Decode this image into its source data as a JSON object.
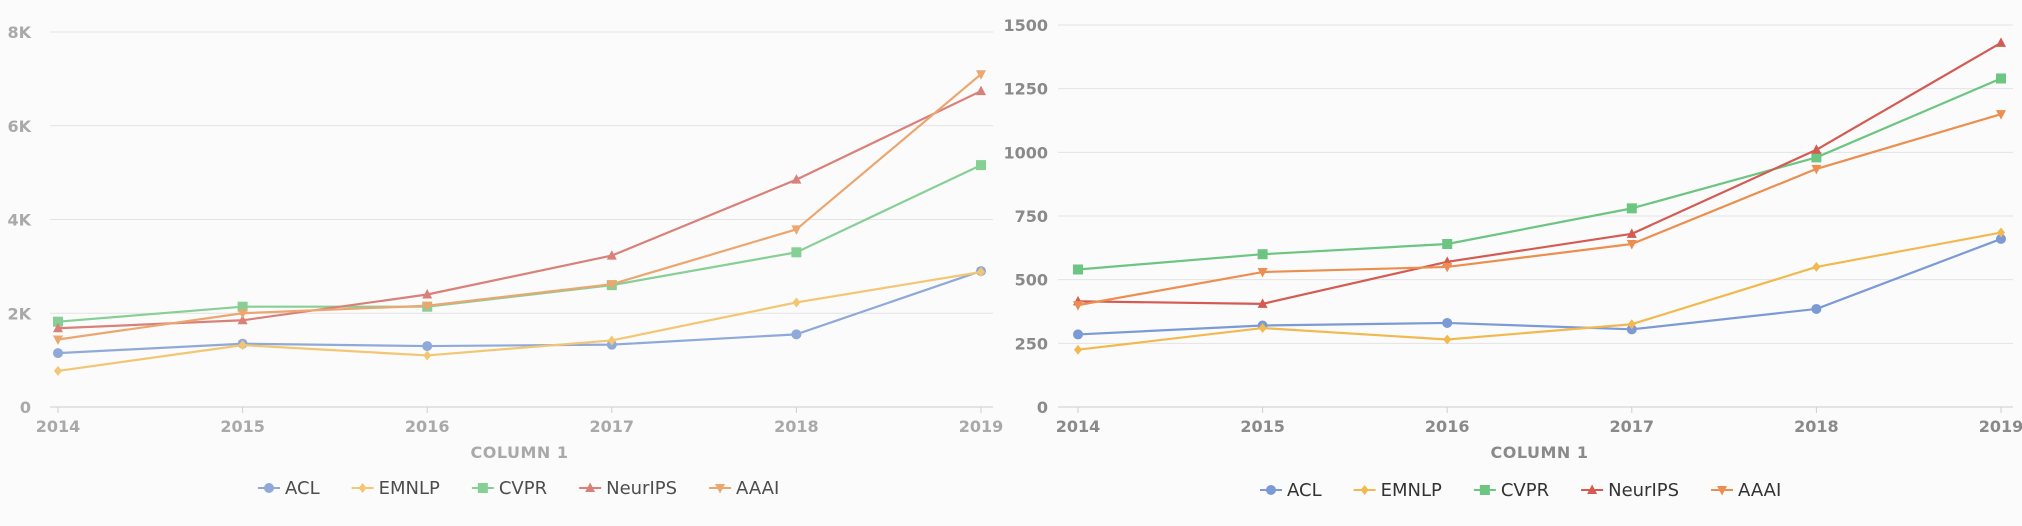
{
  "chart_data": [
    {
      "type": "line",
      "title": "",
      "xlabel": "COLUMN 1",
      "ylabel": "",
      "x": [
        2014,
        2015,
        2016,
        2017,
        2018,
        2019
      ],
      "x_tick_labels": [
        "2014",
        "2015",
        "2016",
        "2017",
        "2018",
        "2019"
      ],
      "ylim": [
        0,
        8000
      ],
      "y_ticks": [
        0,
        2000,
        4000,
        6000,
        8000
      ],
      "y_tick_labels": [
        "0",
        "2K",
        "4K",
        "6K",
        "8K"
      ],
      "grid": "horizontal",
      "legend": "bottom-center",
      "muted": true,
      "series": [
        {
          "name": "ACL",
          "color": "#8fa9d8",
          "marker": "circle",
          "values": [
            1150,
            1350,
            1300,
            1330,
            1550,
            2900
          ]
        },
        {
          "name": "EMNLP",
          "color": "#f3c673",
          "marker": "diamond",
          "values": [
            770,
            1320,
            1100,
            1420,
            2230,
            2880
          ]
        },
        {
          "name": "CVPR",
          "color": "#86cf95",
          "marker": "square",
          "values": [
            1820,
            2140,
            2140,
            2600,
            3300,
            5160
          ]
        },
        {
          "name": "NeurIPS",
          "color": "#d98179",
          "marker": "triangle-up",
          "values": [
            1680,
            1850,
            2400,
            3230,
            4850,
            6740
          ]
        },
        {
          "name": "AAAI",
          "color": "#eca66f",
          "marker": "triangle-down",
          "values": [
            1440,
            2000,
            2160,
            2620,
            3790,
            7100
          ]
        }
      ]
    },
    {
      "type": "line",
      "title": "",
      "xlabel": "COLUMN 1",
      "ylabel": "",
      "x": [
        2014,
        2015,
        2016,
        2017,
        2018,
        2019
      ],
      "x_tick_labels": [
        "2014",
        "2015",
        "2016",
        "2017",
        "2018",
        "2019"
      ],
      "ylim": [
        0,
        1500
      ],
      "y_ticks": [
        0,
        250,
        500,
        750,
        1000,
        1250,
        1500
      ],
      "y_tick_labels": [
        "0",
        "250",
        "500",
        "750",
        "1000",
        "1250",
        "1500"
      ],
      "grid": "horizontal",
      "legend": "bottom-center",
      "muted": false,
      "series": [
        {
          "name": "ACL",
          "color": "#7b9ad6",
          "marker": "circle",
          "values": [
            285,
            320,
            330,
            305,
            385,
            660
          ]
        },
        {
          "name": "EMNLP",
          "color": "#f1b94f",
          "marker": "diamond",
          "values": [
            225,
            310,
            265,
            325,
            550,
            685
          ]
        },
        {
          "name": "CVPR",
          "color": "#6cc581",
          "marker": "square",
          "values": [
            540,
            600,
            640,
            780,
            980,
            1290
          ]
        },
        {
          "name": "NeurIPS",
          "color": "#d35b52",
          "marker": "triangle-up",
          "values": [
            415,
            405,
            570,
            680,
            1010,
            1430
          ]
        },
        {
          "name": "AAAI",
          "color": "#ec8e4f",
          "marker": "triangle-down",
          "values": [
            400,
            530,
            550,
            640,
            935,
            1150
          ]
        }
      ]
    }
  ]
}
